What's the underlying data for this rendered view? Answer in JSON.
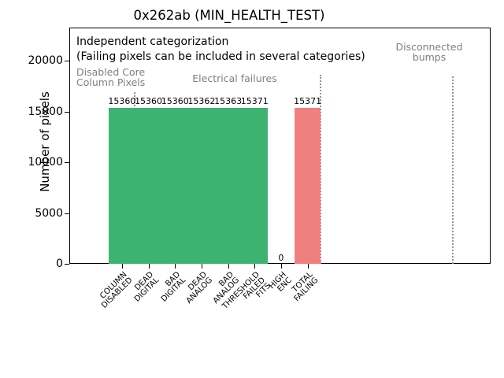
{
  "title": "0x262ab (MIN_HEALTH_TEST)",
  "colors": {
    "green": "#3cb371",
    "red": "#f08080",
    "gray_text": "#7f7f7f",
    "separator": "#949494"
  },
  "chart_data": {
    "type": "bar",
    "title": "0x262ab (MIN_HEALTH_TEST)",
    "xlabel": "",
    "ylabel": "Number of pixels",
    "ylim": [
      0,
      23250
    ],
    "yticks": [
      0,
      5000,
      10000,
      15000,
      20000
    ],
    "grid": false,
    "legend": false,
    "categories": [
      "COLUMN\nDISABLED",
      "DEAD\nDIGITAL",
      "BAD\nDIGITAL",
      "DEAD\nANALOG",
      "BAD\nANALOG",
      "THRESHOLD\nFAILED\nFITS",
      "HIGH\nENC",
      "TOTAL\nFAILING"
    ],
    "values": [
      15360,
      15360,
      15360,
      15362,
      15363,
      15371,
      0,
      15371
    ],
    "bar_labels": [
      "15360",
      "15360",
      "15360",
      "15362",
      "15363",
      "15371",
      "0",
      "15371"
    ],
    "bar_colors": [
      "#3cb371",
      "#3cb371",
      "#3cb371",
      "#3cb371",
      "#3cb371",
      "#3cb371",
      "#3cb371",
      "#f08080"
    ],
    "annotations": {
      "note_line1": "Independent categorization",
      "note_line2": "(Failing pixels can be included in several categories)",
      "region_disabled": "Disabled Core\nColumn Pixels",
      "region_electrical": "Electrical failures",
      "region_disconnected": "Disconnected\nbumps"
    },
    "region_annotations": [
      {
        "label": "Disabled Core Column Pixels",
        "covers": [
          "COLUMN DISABLED"
        ]
      },
      {
        "label": "Electrical failures",
        "covers": [
          "DEAD DIGITAL",
          "BAD DIGITAL",
          "DEAD ANALOG",
          "BAD ANALOG",
          "THRESHOLD FAILED FITS",
          "HIGH ENC",
          "TOTAL FAILING"
        ]
      },
      {
        "label": "Disconnected bumps",
        "covers": []
      }
    ]
  }
}
